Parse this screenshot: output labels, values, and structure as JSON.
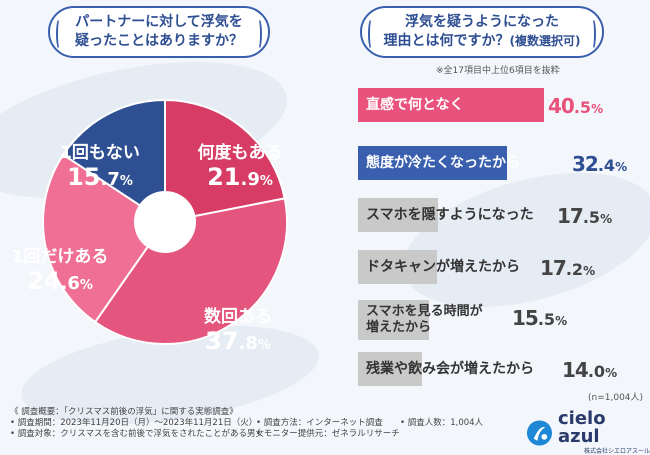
{
  "questions": {
    "left": {
      "line1": "パートナーに対して浮気を",
      "line2": "疑ったことはありますか？"
    },
    "right": {
      "line1": "浮気を疑うようになった",
      "line2": "理由とは何ですか？",
      "sub": "(複数選択可)"
    }
  },
  "notes": {
    "bar_note": "※全17項目中上位6項目を抜粋",
    "sample": "(n=1,004人)"
  },
  "colors": {
    "navy": "#2f4f93",
    "red": "#d63c64",
    "pink": "#e5567e",
    "lightpink": "#ef6f95",
    "barpink": "#e8527b",
    "barblue": "#3a5fae",
    "bargray": "#c9c9c9"
  },
  "chart_data": [
    {
      "type": "pie",
      "title": "パートナーに対して浮気を疑ったことはありますか？",
      "categories": [
        "何度もある",
        "数回ある",
        "1回だけある",
        "1回もない"
      ],
      "values": [
        21.9,
        37.8,
        24.6,
        15.7
      ],
      "labels": [
        {
          "name": "何度もある",
          "int": "21",
          "dec": ".9",
          "unit": "%"
        },
        {
          "name": "数回ある",
          "int": "37",
          "dec": ".8",
          "unit": "%"
        },
        {
          "name": "1回だけある",
          "int": "24",
          "dec": ".6",
          "unit": "%"
        },
        {
          "name": "1回もない",
          "int": "15",
          "dec": ".7",
          "unit": "%"
        }
      ],
      "colors": [
        "#d63c64",
        "#e5567e",
        "#ef6f95",
        "#2f4f93"
      ]
    },
    {
      "type": "bar",
      "orientation": "horizontal",
      "title": "浮気を疑うようになった理由とは何ですか？(複数選択可)",
      "categories": [
        "直感で何となく",
        "態度が冷たくなったから",
        "スマホを隠すようになった",
        "ドタキャンが増えたから",
        "スマホを見る時間が増えたから",
        "残業や飲み会が増えたから"
      ],
      "values": [
        40.5,
        32.4,
        17.5,
        17.2,
        15.5,
        14.0
      ],
      "labels": [
        {
          "line1": "直感で何となく",
          "line2": "",
          "int": "40",
          "dec": ".5",
          "unit": "%"
        },
        {
          "line1": "態度が冷たくなったから",
          "line2": "",
          "int": "32",
          "dec": ".4",
          "unit": "%"
        },
        {
          "line1": "スマホを隠すようになった",
          "line2": "",
          "int": "17",
          "dec": ".5",
          "unit": "%"
        },
        {
          "line1": "ドタキャンが増えたから",
          "line2": "",
          "int": "17",
          "dec": ".2",
          "unit": "%"
        },
        {
          "line1": "スマホを見る時間が",
          "line2": "増えたから",
          "int": "15",
          "dec": ".5",
          "unit": "%"
        },
        {
          "line1": "残業や飲み会が増えたから",
          "line2": "",
          "int": "14",
          "dec": ".0",
          "unit": "%"
        }
      ],
      "xlim": [
        0,
        40.5
      ]
    }
  ],
  "footer": {
    "overview": "《 調査概要：「クリスマス前後の浮気」に関する実態調査》",
    "period": "• 調査期間：2023年11月20日（月）〜2023年11月21日（火）",
    "method": "• 調査方法：インターネット調査",
    "count": "• 調査人数：1,004人",
    "target": "• 調査対象：クリスマスを含む前後で浮気をされたことがある男女",
    "provider": "• モニター提供元：ゼネラルリサーチ"
  },
  "brand": {
    "name": "cielo azul",
    "corp": "株式会社シエロアスール"
  }
}
